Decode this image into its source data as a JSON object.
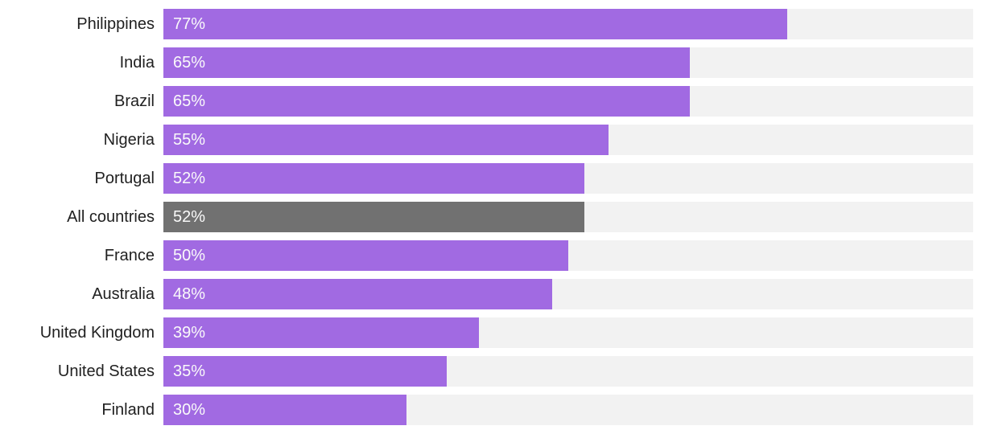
{
  "chart_data": {
    "type": "bar",
    "orientation": "horizontal",
    "title": "",
    "xlabel": "",
    "ylabel": "",
    "xlim": [
      0,
      100
    ],
    "grid": false,
    "legend": false,
    "categories": [
      "Philippines",
      "India",
      "Brazil",
      "Nigeria",
      "Portugal",
      "All countries",
      "France",
      "Australia",
      "United Kingdom",
      "United States",
      "Finland"
    ],
    "values": [
      77,
      65,
      65,
      55,
      52,
      52,
      50,
      48,
      39,
      35,
      30
    ],
    "value_labels": [
      "77%",
      "65%",
      "65%",
      "55%",
      "52%",
      "52%",
      "50%",
      "48%",
      "39%",
      "35%",
      "30%"
    ],
    "highlight_category": "All countries",
    "colors": {
      "bar": "#a16ae2",
      "highlight_bar": "#717171",
      "track": "#f2f2f2",
      "label_text": "#212121",
      "value_text": "#fafafa",
      "background": "#ffffff"
    }
  }
}
